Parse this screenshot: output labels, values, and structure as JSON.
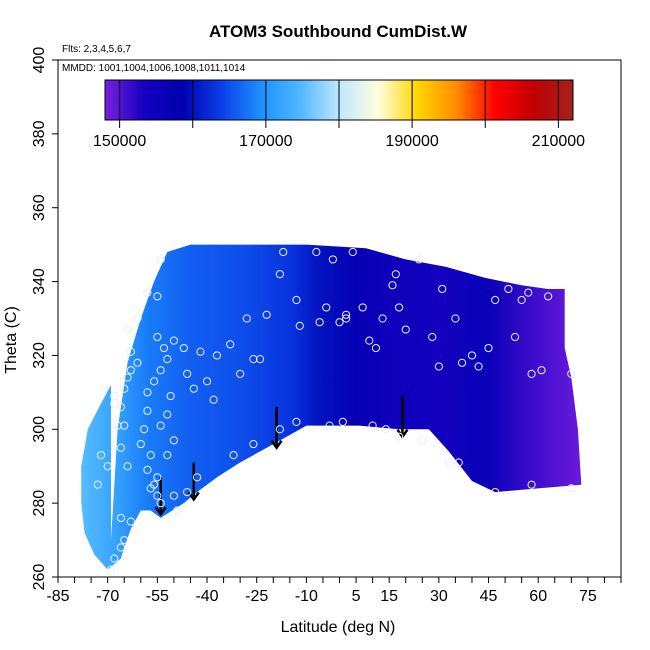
{
  "chart_data": {
    "type": "heatmap",
    "title": "ATOM3 Southbound CumDist.W",
    "notes": {
      "flights": "Flts: 2,3,4,5,6,7",
      "dates": "MMDD: 1001,1004,1006,1008,1011,1014"
    },
    "xlabel": "Latitude (deg N)",
    "ylabel": "Theta (C)",
    "xlim": [
      -85,
      85
    ],
    "ylim": [
      260,
      400
    ],
    "x_tick_labels": [
      "-85",
      "-70",
      "-55",
      "-40",
      "-25",
      "-10",
      "5",
      "15",
      "30",
      "45",
      "60",
      "75"
    ],
    "x_tick_values": [
      -85,
      -70,
      -55,
      -40,
      -25,
      -10,
      5,
      15,
      30,
      45,
      60,
      75
    ],
    "x_minor_tick_step": 5,
    "y_tick_labels": [
      "260",
      "280",
      "300",
      "320",
      "340",
      "360",
      "380",
      "400"
    ],
    "y_tick_values": [
      260,
      280,
      300,
      320,
      340,
      360,
      380,
      400
    ],
    "colorbar": {
      "min": 148000,
      "max": 212000,
      "tick_labels": [
        "150000",
        "170000",
        "190000",
        "210000"
      ],
      "tick_values": [
        150000,
        170000,
        190000,
        210000
      ],
      "segment_boundaries": [
        150000,
        160000,
        170000,
        180000,
        190000,
        200000,
        210000
      ],
      "colors": [
        "#7a1fe0",
        "#1400c0",
        "#0000b0",
        "#0a40e8",
        "#1e90ff",
        "#50b8ff",
        "#bfe6ff",
        "#ffffe0",
        "#ffd700",
        "#ff8c00",
        "#ff0000",
        "#c00000",
        "#a52020"
      ]
    },
    "field": {
      "upper_boundary": [
        [
          -69,
          270
        ],
        [
          -67,
          300
        ],
        [
          -64,
          318
        ],
        [
          -60,
          330
        ],
        [
          -56,
          340
        ],
        [
          -52,
          348
        ],
        [
          -45,
          350
        ],
        [
          -10,
          350
        ],
        [
          8,
          349
        ],
        [
          20,
          346
        ],
        [
          32,
          344
        ],
        [
          44,
          341
        ],
        [
          55,
          339
        ],
        [
          63,
          338
        ],
        [
          68,
          338
        ],
        [
          68,
          322
        ],
        [
          70,
          314
        ],
        [
          72,
          300
        ],
        [
          73,
          285
        ]
      ],
      "lower_boundary": [
        [
          73,
          285
        ],
        [
          60,
          284
        ],
        [
          47,
          283
        ],
        [
          40,
          286
        ],
        [
          33,
          294
        ],
        [
          27,
          300
        ],
        [
          18,
          300
        ],
        [
          6,
          301
        ],
        [
          -10,
          301
        ],
        [
          -20,
          296
        ],
        [
          -30,
          291
        ],
        [
          -37,
          287
        ],
        [
          -43,
          283
        ],
        [
          -47,
          280
        ],
        [
          -54,
          276
        ],
        [
          -57,
          278
        ],
        [
          -60,
          278
        ],
        [
          -63,
          273
        ],
        [
          -65,
          268
        ],
        [
          -66,
          265
        ],
        [
          -70,
          262
        ],
        [
          -74,
          266
        ],
        [
          -77,
          272
        ],
        [
          -78,
          280
        ],
        [
          -78,
          290
        ],
        [
          -76,
          300
        ],
        [
          -72,
          307
        ],
        [
          -69,
          312
        ]
      ],
      "value_vs_latitude": [
        [
          -78,
          175000
        ],
        [
          -68,
          172000
        ],
        [
          -58,
          168000
        ],
        [
          -45,
          166000
        ],
        [
          -30,
          165000
        ],
        [
          -15,
          163000
        ],
        [
          -5,
          160000
        ],
        [
          5,
          157000
        ],
        [
          15,
          155000
        ],
        [
          30,
          154000
        ],
        [
          45,
          156000
        ],
        [
          60,
          151000
        ],
        [
          72,
          149000
        ]
      ]
    },
    "observations": [
      {
        "lat": -69,
        "theta": 262
      },
      {
        "lat": -68,
        "theta": 265
      },
      {
        "lat": -66,
        "theta": 268
      },
      {
        "lat": -65,
        "theta": 270
      },
      {
        "lat": -73,
        "theta": 285
      },
      {
        "lat": -72,
        "theta": 293
      },
      {
        "lat": -70,
        "theta": 290
      },
      {
        "lat": -66,
        "theta": 276
      },
      {
        "lat": -63,
        "theta": 275
      },
      {
        "lat": -64,
        "theta": 290
      },
      {
        "lat": -66,
        "theta": 295
      },
      {
        "lat": -67,
        "theta": 301
      },
      {
        "lat": -65,
        "theta": 301
      },
      {
        "lat": -66,
        "theta": 306
      },
      {
        "lat": -68,
        "theta": 307
      },
      {
        "lat": -68,
        "theta": 309
      },
      {
        "lat": -65,
        "theta": 311
      },
      {
        "lat": -64,
        "theta": 314
      },
      {
        "lat": -63,
        "theta": 316
      },
      {
        "lat": -61,
        "theta": 318
      },
      {
        "lat": -63,
        "theta": 321
      },
      {
        "lat": -64,
        "theta": 327
      },
      {
        "lat": -61,
        "theta": 330
      },
      {
        "lat": -58,
        "theta": 337
      },
      {
        "lat": -58,
        "theta": 305
      },
      {
        "lat": -59,
        "theta": 300
      },
      {
        "lat": -60,
        "theta": 296
      },
      {
        "lat": -57,
        "theta": 293
      },
      {
        "lat": -58,
        "theta": 289
      },
      {
        "lat": -56,
        "theta": 285
      },
      {
        "lat": -55,
        "theta": 282
      },
      {
        "lat": -54,
        "theta": 280
      },
      {
        "lat": -50,
        "theta": 282
      },
      {
        "lat": -49,
        "theta": 278
      },
      {
        "lat": -46,
        "theta": 283
      },
      {
        "lat": -43,
        "theta": 287
      },
      {
        "lat": -58,
        "theta": 310
      },
      {
        "lat": -56,
        "theta": 313
      },
      {
        "lat": -54,
        "theta": 316
      },
      {
        "lat": -52,
        "theta": 319
      },
      {
        "lat": -53,
        "theta": 322
      },
      {
        "lat": -55,
        "theta": 325
      },
      {
        "lat": -50,
        "theta": 324
      },
      {
        "lat": -47,
        "theta": 322
      },
      {
        "lat": -42,
        "theta": 321
      },
      {
        "lat": -46,
        "theta": 315
      },
      {
        "lat": -44,
        "theta": 311
      },
      {
        "lat": -40,
        "theta": 313
      },
      {
        "lat": -38,
        "theta": 308
      },
      {
        "lat": -51,
        "theta": 309
      },
      {
        "lat": -52,
        "theta": 304
      },
      {
        "lat": -54,
        "theta": 301
      },
      {
        "lat": -50,
        "theta": 297
      },
      {
        "lat": -52,
        "theta": 293
      },
      {
        "lat": -55,
        "theta": 287
      },
      {
        "lat": -57,
        "theta": 284
      },
      {
        "lat": -55,
        "theta": 336
      },
      {
        "lat": -54,
        "theta": 346
      },
      {
        "lat": -33,
        "theta": 323
      },
      {
        "lat": -37,
        "theta": 320
      },
      {
        "lat": -28,
        "theta": 330
      },
      {
        "lat": -26,
        "theta": 319
      },
      {
        "lat": -24,
        "theta": 319
      },
      {
        "lat": -22,
        "theta": 331
      },
      {
        "lat": -18,
        "theta": 342
      },
      {
        "lat": -17,
        "theta": 348
      },
      {
        "lat": -13,
        "theta": 335
      },
      {
        "lat": -12,
        "theta": 328
      },
      {
        "lat": -7,
        "theta": 348
      },
      {
        "lat": -6,
        "theta": 329
      },
      {
        "lat": -4,
        "theta": 333
      },
      {
        "lat": -2,
        "theta": 346
      },
      {
        "lat": 0,
        "theta": 329
      },
      {
        "lat": 2,
        "theta": 331
      },
      {
        "lat": 2,
        "theta": 330
      },
      {
        "lat": 4,
        "theta": 348
      },
      {
        "lat": 7,
        "theta": 333
      },
      {
        "lat": 9,
        "theta": 324
      },
      {
        "lat": 11,
        "theta": 322
      },
      {
        "lat": 13,
        "theta": 330
      },
      {
        "lat": 16,
        "theta": 339
      },
      {
        "lat": 17,
        "theta": 342
      },
      {
        "lat": 18,
        "theta": 333
      },
      {
        "lat": 20,
        "theta": 327
      },
      {
        "lat": 24,
        "theta": 346
      },
      {
        "lat": 28,
        "theta": 325
      },
      {
        "lat": 30,
        "theta": 317
      },
      {
        "lat": 31,
        "theta": 338
      },
      {
        "lat": 35,
        "theta": 330
      },
      {
        "lat": 37,
        "theta": 318
      },
      {
        "lat": 40,
        "theta": 320
      },
      {
        "lat": 42,
        "theta": 317
      },
      {
        "lat": 45,
        "theta": 322
      },
      {
        "lat": 47,
        "theta": 335
      },
      {
        "lat": 51,
        "theta": 338
      },
      {
        "lat": 53,
        "theta": 325
      },
      {
        "lat": 55,
        "theta": 335
      },
      {
        "lat": 57,
        "theta": 337
      },
      {
        "lat": 58,
        "theta": 315
      },
      {
        "lat": 61,
        "theta": 316
      },
      {
        "lat": 63,
        "theta": 336
      },
      {
        "lat": 70,
        "theta": 315
      },
      {
        "lat": -30,
        "theta": 315
      },
      {
        "lat": -32,
        "theta": 293
      },
      {
        "lat": -26,
        "theta": 296
      },
      {
        "lat": -18,
        "theta": 300
      },
      {
        "lat": -13,
        "theta": 302
      },
      {
        "lat": -3,
        "theta": 301
      },
      {
        "lat": 1,
        "theta": 302
      },
      {
        "lat": 10,
        "theta": 301
      },
      {
        "lat": 14,
        "theta": 300
      },
      {
        "lat": 18,
        "theta": 298
      },
      {
        "lat": 25,
        "theta": 297
      },
      {
        "lat": 33,
        "theta": 291
      },
      {
        "lat": 36,
        "theta": 291
      },
      {
        "lat": 47,
        "theta": 283
      },
      {
        "lat": 58,
        "theta": 285
      },
      {
        "lat": 70,
        "theta": 284
      }
    ],
    "arrows": [
      {
        "lat": -54,
        "theta_from": 287,
        "theta_to": 277
      },
      {
        "lat": -44,
        "theta_from": 291,
        "theta_to": 281
      },
      {
        "lat": -19,
        "theta_from": 306,
        "theta_to": 295
      },
      {
        "lat": 19,
        "theta_from": 309,
        "theta_to": 298
      }
    ]
  }
}
